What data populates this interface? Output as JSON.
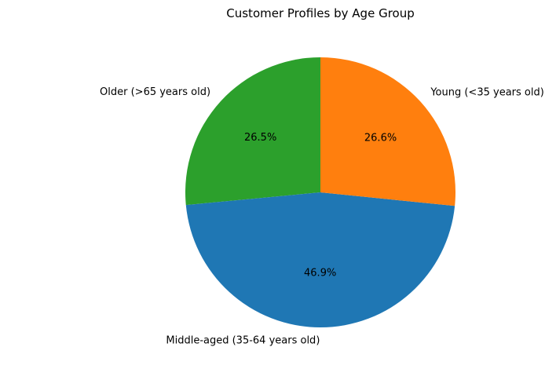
{
  "chart_data": {
    "type": "pie",
    "title": "Customer Profiles by Age Group",
    "slices": [
      {
        "label": "Older (>65 years old)",
        "value": 26.5,
        "pct_label": "26.5%",
        "color": "#2ca02c"
      },
      {
        "label": "Middle-aged (35-64 years old)",
        "value": 46.9,
        "pct_label": "46.9%",
        "color": "#1f77b4"
      },
      {
        "label": "Young (<35 years old)",
        "value": 26.6,
        "pct_label": "26.6%",
        "color": "#ff7f0e"
      }
    ],
    "start_angle_deg": 90,
    "direction": "counterclockwise"
  }
}
